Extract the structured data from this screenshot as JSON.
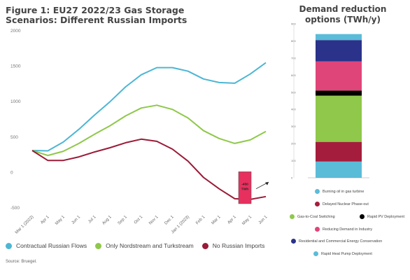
{
  "title": "Figure 1: EU27 2022/23 Gas Storage Scenarios: Different Russian Imports",
  "right_title": "Demand reduction options (TWh/y)",
  "source": "Source: Bruegel.",
  "annotation": {
    "line1": "-450",
    "line2": "TWh"
  },
  "chart_data": [
    {
      "type": "line",
      "x": [
        "Mar 1 (2022)",
        "Apr 1",
        "May 1",
        "Jun 1",
        "Jul 1",
        "Aug 1",
        "Sep 1",
        "Oct 1",
        "Nov 1",
        "Dec 1",
        "Jan 1 (2023)",
        "Feb 1",
        "Mar 1",
        "Apr 1",
        "May 1",
        "Jun 1"
      ],
      "ylim": [
        -500,
        2000
      ],
      "yticks": [
        -500,
        0,
        500,
        1000,
        1500,
        2000
      ],
      "grid": false,
      "legend": "bottom",
      "series": [
        {
          "name": "Contractual Russian Flows",
          "color": "#4db6d4",
          "values": [
            300,
            295,
            420,
            600,
            800,
            990,
            1200,
            1370,
            1470,
            1470,
            1420,
            1310,
            1260,
            1250,
            1380,
            1540
          ]
        },
        {
          "name": "Only Nordstream and Turkstream",
          "color": "#8fc84a",
          "values": [
            300,
            230,
            290,
            400,
            530,
            650,
            790,
            900,
            940,
            880,
            760,
            580,
            470,
            400,
            450,
            570
          ]
        },
        {
          "name": "No Russian Imports",
          "color": "#9a1b37",
          "values": [
            300,
            160,
            160,
            210,
            280,
            340,
            410,
            460,
            430,
            320,
            150,
            -80,
            -240,
            -380,
            -390,
            -350
          ]
        }
      ]
    },
    {
      "type": "bar",
      "stacked": true,
      "ylim": [
        0,
        900
      ],
      "yticks": [
        0,
        100,
        200,
        300,
        400,
        500,
        600,
        700,
        800,
        900
      ],
      "legend": "bottom",
      "segments": [
        {
          "name": "Rapid Heat Pump Deployment",
          "color": "#5bbcd8",
          "value": 95
        },
        {
          "name": "Delayed Nuclear Phase-out",
          "color": "#a51d3c",
          "value": 115
        },
        {
          "name": "Gas-to-Coal Switching",
          "color": "#8fc84a",
          "value": 270
        },
        {
          "name": "Rapid PV Deployment",
          "color": "#000000",
          "value": 30
        },
        {
          "name": "Reducing Demand in Industry",
          "color": "#e0457a",
          "value": 170
        },
        {
          "name": "Residential and Commercial Energy Conservation",
          "color": "#2a3289",
          "value": 125
        },
        {
          "name": "Burning oil in gas turbine",
          "color": "#5bbcd8",
          "value": 35
        }
      ]
    }
  ]
}
